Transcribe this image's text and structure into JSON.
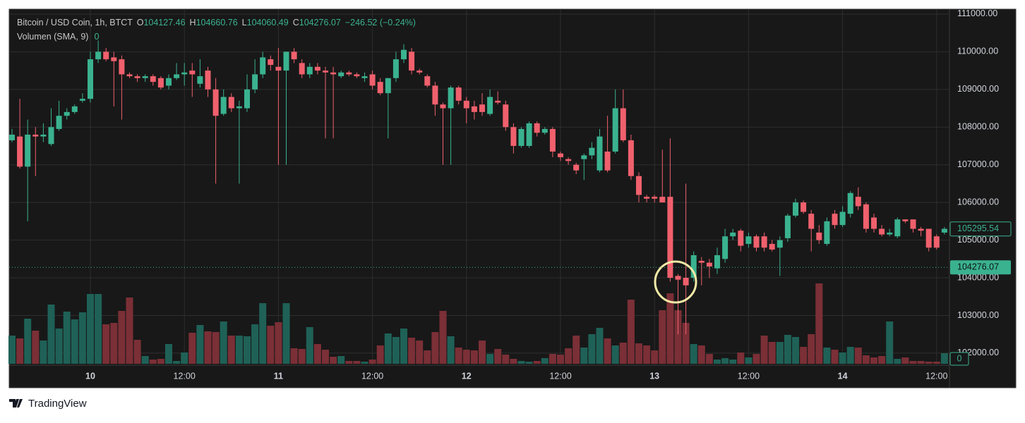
{
  "chart_data": {
    "type": "candlestick",
    "header": {
      "symbol": "Bitcoin / USD Coin, 1h, BTCT",
      "ohlc": [
        {
          "key": "O",
          "value": "104127.46"
        },
        {
          "key": "H",
          "value": "104660.76"
        },
        {
          "key": "L",
          "value": "104060.49"
        },
        {
          "key": "C",
          "value": "104276.07"
        }
      ],
      "change": "−246.52 (−0.24%)",
      "volume_label": "Volumen (SMA, 9)",
      "volume_value": "0"
    },
    "categories": [
      null,
      null,
      null,
      null,
      null,
      null,
      null,
      null,
      null,
      null,
      "10",
      null,
      null,
      null,
      null,
      null,
      null,
      null,
      null,
      null,
      null,
      null,
      "12:00",
      null,
      null,
      null,
      null,
      null,
      null,
      null,
      null,
      null,
      null,
      null,
      "11",
      null,
      null,
      null,
      null,
      null,
      null,
      null,
      null,
      null,
      null,
      null,
      "12:00",
      null,
      null,
      null,
      null,
      null,
      null,
      null,
      null,
      null,
      null,
      null,
      "12",
      null,
      null,
      null,
      null,
      null,
      null,
      null,
      null,
      null,
      null,
      null,
      "12:00",
      null,
      null,
      null,
      null,
      null,
      null,
      null,
      null,
      null,
      null,
      null,
      "13",
      null,
      null,
      null,
      null,
      null,
      null,
      null,
      null,
      null,
      null,
      null,
      "12:00",
      null,
      null,
      null,
      null,
      null,
      null,
      null,
      null,
      null,
      null,
      null,
      "14",
      null,
      null,
      null,
      null,
      null,
      null,
      null,
      null,
      null,
      null,
      null,
      "12:00",
      null
    ],
    "open": [
      107650,
      107750,
      106950,
      107800,
      107750,
      107550,
      107950,
      108300,
      108400,
      108700,
      108750,
      109800,
      110000,
      109850,
      109800,
      109400,
      109350,
      109300,
      109350,
      109300,
      109100,
      109300,
      109400,
      109500,
      109150,
      109500,
      109000,
      108350,
      108800,
      108500,
      108500,
      109000,
      109400,
      109800,
      109600,
      109500,
      110000,
      109700,
      109400,
      109600,
      109500,
      109450,
      109350,
      109450,
      109400,
      109300,
      109400,
      109200,
      108900,
      109300,
      109800,
      110000,
      109500,
      109350,
      109100,
      108600,
      108500,
      109050,
      108700,
      108550,
      108600,
      108350,
      108700,
      108600,
      108000,
      107500,
      107500,
      108100,
      107850,
      107950,
      107300,
      107150,
      107000,
      107150,
      107250,
      106850,
      107350,
      107350,
      108500,
      107650,
      106700,
      106150,
      106150,
      106150,
      106150,
      104050,
      104000,
      104000,
      104450,
      104400,
      104250,
      104500,
      105100,
      105250,
      104900,
      105100,
      105100,
      104900,
      104800,
      105050,
      105650,
      106000,
      105700,
      105200,
      104900,
      105700,
      105400,
      105700,
      106150,
      105950,
      105600,
      105300,
      105150,
      105100,
      105550,
      105550,
      105300,
      105300,
      105100,
      105200
    ],
    "high": [
      107950,
      108750,
      108200,
      108000,
      108100,
      108500,
      108700,
      108500,
      108600,
      108900,
      110000,
      110300,
      110100,
      110000,
      109900,
      109450,
      109400,
      109400,
      109400,
      109350,
      109400,
      109700,
      109700,
      109700,
      109800,
      109600,
      109300,
      109000,
      108900,
      108700,
      109400,
      109800,
      110000,
      109900,
      110100,
      110000,
      110100,
      109800,
      109700,
      109700,
      109600,
      109600,
      109500,
      109500,
      109450,
      109450,
      109500,
      109300,
      109300,
      110000,
      110200,
      110100,
      109550,
      109400,
      109200,
      108650,
      109100,
      109100,
      108800,
      108700,
      108900,
      109000,
      108950,
      108700,
      108100,
      108000,
      108150,
      108150,
      108000,
      108000,
      107350,
      107200,
      107050,
      107300,
      107600,
      107950,
      108300,
      109000,
      109000,
      107800,
      106800,
      106200,
      106200,
      107400,
      107700,
      104100,
      106500,
      104700,
      104550,
      104500,
      104800,
      105300,
      105300,
      105300,
      105200,
      105150,
      105200,
      105000,
      105100,
      105700,
      106100,
      106050,
      105800,
      105400,
      105600,
      105800,
      105900,
      106300,
      106400,
      106000,
      105700,
      105400,
      105300,
      105600,
      105550,
      105550,
      105350,
      105300,
      105150,
      105350
    ],
    "low": [
      107600,
      106900,
      105500,
      106700,
      107600,
      107500,
      107900,
      108200,
      108350,
      108650,
      108650,
      109700,
      109750,
      108550,
      108200,
      109300,
      109200,
      109200,
      109100,
      109000,
      109000,
      109250,
      109100,
      108800,
      109050,
      108800,
      106500,
      108300,
      108400,
      106500,
      108400,
      108900,
      109300,
      109500,
      107000,
      107000,
      109700,
      109300,
      109300,
      109400,
      107700,
      107700,
      109300,
      109350,
      109300,
      109200,
      109000,
      108850,
      107700,
      109200,
      109700,
      109400,
      109400,
      109050,
      108300,
      107000,
      107000,
      108600,
      108100,
      108200,
      108300,
      108300,
      108600,
      107900,
      107300,
      107450,
      107450,
      107750,
      107800,
      107200,
      107100,
      107000,
      106750,
      106600,
      107150,
      106800,
      106800,
      107300,
      107600,
      106600,
      106000,
      106000,
      106000,
      106000,
      103900,
      102500,
      102500,
      103900,
      103800,
      104000,
      104100,
      104400,
      105000,
      104700,
      104800,
      104700,
      104700,
      104700,
      104050,
      104950,
      105600,
      105700,
      104700,
      104900,
      104850,
      105300,
      105350,
      105600,
      105800,
      105200,
      105200,
      105100,
      105100,
      105050,
      105450,
      105200,
      105100,
      104700,
      104750,
      105150
    ],
    "close": [
      107800,
      106950,
      107800,
      107750,
      107800,
      108000,
      108300,
      108400,
      108550,
      108750,
      109800,
      110000,
      109800,
      109750,
      109400,
      109350,
      109300,
      109350,
      109200,
      109050,
      109300,
      109400,
      109450,
      109400,
      109350,
      109000,
      108300,
      108800,
      108500,
      108550,
      109000,
      109400,
      109850,
      109650,
      109500,
      110000,
      109800,
      109400,
      109600,
      109500,
      109450,
      109400,
      109450,
      109400,
      109350,
      109350,
      109100,
      108900,
      109300,
      109800,
      110050,
      109500,
      109450,
      109100,
      108600,
      108500,
      109050,
      108700,
      108500,
      108400,
      108400,
      108800,
      108650,
      108000,
      107500,
      107950,
      108100,
      107850,
      107950,
      107350,
      107200,
      107100,
      106850,
      107250,
      107450,
      107750,
      106850,
      108500,
      107650,
      106700,
      106200,
      106100,
      106100,
      106000,
      104000,
      103950,
      103800,
      104600,
      104400,
      104300,
      104600,
      105100,
      105200,
      104850,
      105100,
      104800,
      104800,
      104750,
      105000,
      105650,
      106000,
      105750,
      105300,
      105000,
      105500,
      105400,
      105750,
      106250,
      105900,
      105300,
      105300,
      105150,
      105200,
      105550,
      105500,
      105300,
      105250,
      104800,
      104800,
      105300
    ],
    "volume": [
      40,
      36,
      64,
      47,
      33,
      84,
      50,
      74,
      63,
      73,
      99,
      99,
      56,
      58,
      75,
      94,
      34,
      11,
      6,
      7,
      28,
      4,
      16,
      44,
      55,
      46,
      45,
      60,
      40,
      40,
      39,
      56,
      86,
      54,
      59,
      86,
      22,
      21,
      52,
      28,
      20,
      10,
      11,
      4,
      4,
      3,
      6,
      26,
      43,
      38,
      50,
      37,
      33,
      19,
      45,
      75,
      39,
      23,
      20,
      19,
      33,
      14,
      21,
      13,
      7,
      4,
      3,
      4,
      8,
      14,
      13,
      22,
      40,
      23,
      42,
      51,
      36,
      26,
      30,
      91,
      29,
      26,
      19,
      76,
      100,
      76,
      58,
      28,
      26,
      14,
      6,
      8,
      6,
      16,
      9,
      14,
      40,
      31,
      31,
      41,
      38,
      24,
      42,
      114,
      23,
      20,
      16,
      24,
      23,
      12,
      9,
      11,
      60,
      7,
      9,
      4,
      4,
      3,
      3,
      15
    ],
    "volume_lim": [
      0,
      120
    ],
    "ylim": [
      101680,
      111130
    ],
    "yticks": [
      {
        "value": 111000,
        "label": "111000.00"
      },
      {
        "value": 110000,
        "label": "110000.00"
      },
      {
        "value": 109000,
        "label": "109000.00"
      },
      {
        "value": 108000,
        "label": "108000.00"
      },
      {
        "value": 107000,
        "label": "107000.00"
      },
      {
        "value": 106000,
        "label": "106000.00"
      },
      {
        "value": 105000,
        "label": "105000.00"
      },
      {
        "value": 104000,
        "label": "104000.00"
      },
      {
        "value": 103000,
        "label": "103000.00"
      },
      {
        "value": 102000,
        "label": "102000.00"
      }
    ],
    "marker_price": 105295.54,
    "last_price": 104276.07,
    "grid": true,
    "up_color": "#3ab28f",
    "down_color": "#f0606d",
    "volume_up_color": "#1f6157",
    "volume_down_color": "#7b2f36"
  },
  "footer": {
    "brand": "TradingView"
  }
}
